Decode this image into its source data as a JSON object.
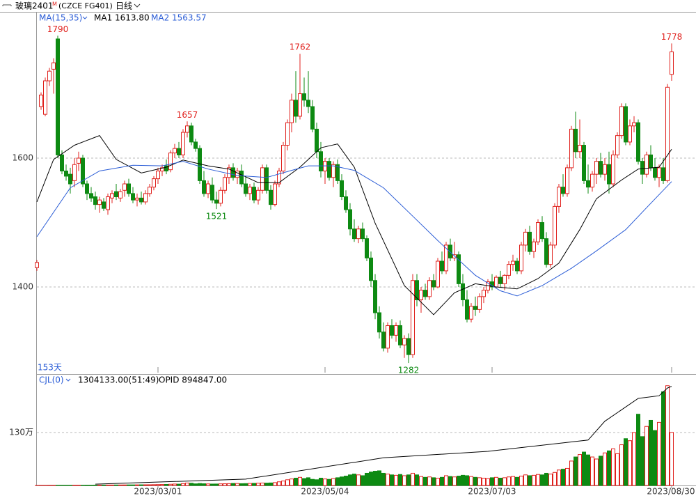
{
  "chart_data": {
    "type": "candlestick",
    "title": "玻璃2401",
    "contract_mark": "M",
    "code": "(CZCE FG401)",
    "period": "日线",
    "indicator": "MA(15,35)",
    "days": "153天",
    "up_color": "#e0201c",
    "down_color": "#0d8a12",
    "ylim": [
      1267,
      1826
    ],
    "yticks": [
      1400,
      1600
    ],
    "grid": true,
    "xticks": [
      {
        "value": 29,
        "label": "2023/03/01"
      },
      {
        "value": 69,
        "label": "2023/05/04"
      },
      {
        "value": 109,
        "label": "2023/07/03"
      },
      {
        "value": 152,
        "label": "2023/08/30"
      }
    ],
    "candles": [
      [
        1430,
        1442,
        1425,
        1438
      ],
      [
        1680,
        1702,
        1675,
        1698
      ],
      [
        1668,
        1725,
        1665,
        1720
      ],
      [
        1720,
        1740,
        1712,
        1735
      ],
      [
        1738,
        1755,
        1700,
        1748
      ],
      [
        1785,
        1790,
        1600,
        1605
      ],
      [
        1605,
        1612,
        1575,
        1580
      ],
      [
        1580,
        1590,
        1565,
        1572
      ],
      [
        1575,
        1585,
        1545,
        1560
      ],
      [
        1565,
        1600,
        1555,
        1590
      ],
      [
        1592,
        1610,
        1580,
        1600
      ],
      [
        1600,
        1605,
        1555,
        1560
      ],
      [
        1560,
        1565,
        1535,
        1545
      ],
      [
        1545,
        1555,
        1532,
        1538
      ],
      [
        1540,
        1548,
        1520,
        1528
      ],
      [
        1528,
        1540,
        1515,
        1535
      ],
      [
        1532,
        1538,
        1518,
        1522
      ],
      [
        1520,
        1545,
        1512,
        1540
      ],
      [
        1538,
        1550,
        1530,
        1545
      ],
      [
        1548,
        1560,
        1535,
        1540
      ],
      [
        1538,
        1552,
        1532,
        1548
      ],
      [
        1550,
        1565,
        1540,
        1560
      ],
      [
        1560,
        1568,
        1540,
        1545
      ],
      [
        1545,
        1555,
        1530,
        1535
      ],
      [
        1535,
        1545,
        1525,
        1538
      ],
      [
        1538,
        1548,
        1528,
        1532
      ],
      [
        1532,
        1550,
        1528,
        1545
      ],
      [
        1545,
        1560,
        1540,
        1555
      ],
      [
        1555,
        1572,
        1550,
        1568
      ],
      [
        1568,
        1585,
        1560,
        1580
      ],
      [
        1580,
        1590,
        1572,
        1585
      ],
      [
        1588,
        1598,
        1575,
        1580
      ],
      [
        1582,
        1612,
        1578,
        1608
      ],
      [
        1608,
        1622,
        1600,
        1615
      ],
      [
        1615,
        1625,
        1600,
        1605
      ],
      [
        1605,
        1645,
        1600,
        1640
      ],
      [
        1640,
        1657,
        1632,
        1650
      ],
      [
        1650,
        1655,
        1620,
        1625
      ],
      [
        1625,
        1630,
        1610,
        1615
      ],
      [
        1615,
        1620,
        1560,
        1565
      ],
      [
        1565,
        1580,
        1540,
        1545
      ],
      [
        1545,
        1565,
        1538,
        1560
      ],
      [
        1558,
        1570,
        1530,
        1535
      ],
      [
        1535,
        1548,
        1521,
        1530
      ],
      [
        1530,
        1555,
        1525,
        1550
      ],
      [
        1550,
        1575,
        1545,
        1570
      ],
      [
        1570,
        1590,
        1560,
        1585
      ],
      [
        1585,
        1592,
        1565,
        1570
      ],
      [
        1570,
        1585,
        1560,
        1580
      ],
      [
        1580,
        1590,
        1555,
        1560
      ],
      [
        1560,
        1572,
        1540,
        1545
      ],
      [
        1545,
        1560,
        1535,
        1555
      ],
      [
        1555,
        1562,
        1530,
        1535
      ],
      [
        1535,
        1555,
        1528,
        1550
      ],
      [
        1550,
        1590,
        1545,
        1585
      ],
      [
        1585,
        1590,
        1545,
        1550
      ],
      [
        1550,
        1558,
        1520,
        1528
      ],
      [
        1528,
        1565,
        1525,
        1560
      ],
      [
        1560,
        1585,
        1555,
        1580
      ],
      [
        1580,
        1625,
        1575,
        1620
      ],
      [
        1620,
        1660,
        1612,
        1655
      ],
      [
        1655,
        1700,
        1640,
        1690
      ],
      [
        1690,
        1735,
        1655,
        1665
      ],
      [
        1665,
        1762,
        1660,
        1700
      ],
      [
        1700,
        1725,
        1680,
        1690
      ],
      [
        1690,
        1735,
        1670,
        1680
      ],
      [
        1680,
        1690,
        1640,
        1645
      ],
      [
        1645,
        1655,
        1600,
        1610
      ],
      [
        1610,
        1625,
        1570,
        1580
      ],
      [
        1580,
        1600,
        1560,
        1595
      ],
      [
        1595,
        1600,
        1565,
        1570
      ],
      [
        1570,
        1595,
        1555,
        1590
      ],
      [
        1590,
        1598,
        1560,
        1565
      ],
      [
        1565,
        1575,
        1535,
        1540
      ],
      [
        1540,
        1550,
        1515,
        1520
      ],
      [
        1520,
        1530,
        1480,
        1490
      ],
      [
        1490,
        1505,
        1470,
        1475
      ],
      [
        1475,
        1495,
        1468,
        1490
      ],
      [
        1490,
        1500,
        1470,
        1475
      ],
      [
        1475,
        1480,
        1440,
        1445
      ],
      [
        1445,
        1455,
        1400,
        1410
      ],
      [
        1410,
        1420,
        1350,
        1360
      ],
      [
        1360,
        1370,
        1320,
        1330
      ],
      [
        1330,
        1345,
        1300,
        1305
      ],
      [
        1305,
        1345,
        1298,
        1340
      ],
      [
        1340,
        1350,
        1320,
        1325
      ],
      [
        1325,
        1345,
        1315,
        1340
      ],
      [
        1340,
        1348,
        1305,
        1310
      ],
      [
        1310,
        1325,
        1290,
        1320
      ],
      [
        1320,
        1328,
        1282,
        1295
      ],
      [
        1295,
        1420,
        1290,
        1410
      ],
      [
        1410,
        1420,
        1370,
        1380
      ],
      [
        1380,
        1400,
        1360,
        1395
      ],
      [
        1395,
        1405,
        1380,
        1385
      ],
      [
        1385,
        1415,
        1380,
        1410
      ],
      [
        1410,
        1420,
        1395,
        1400
      ],
      [
        1400,
        1445,
        1398,
        1440
      ],
      [
        1440,
        1455,
        1420,
        1425
      ],
      [
        1425,
        1470,
        1420,
        1465
      ],
      [
        1465,
        1475,
        1440,
        1445
      ],
      [
        1445,
        1470,
        1440,
        1450
      ],
      [
        1450,
        1455,
        1400,
        1405
      ],
      [
        1405,
        1420,
        1370,
        1380
      ],
      [
        1380,
        1395,
        1345,
        1350
      ],
      [
        1350,
        1375,
        1345,
        1370
      ],
      [
        1370,
        1385,
        1355,
        1365
      ],
      [
        1365,
        1390,
        1360,
        1385
      ],
      [
        1385,
        1400,
        1375,
        1395
      ],
      [
        1395,
        1412,
        1390,
        1408
      ],
      [
        1408,
        1420,
        1395,
        1400
      ],
      [
        1400,
        1418,
        1398,
        1415
      ],
      [
        1415,
        1425,
        1400,
        1405
      ],
      [
        1405,
        1420,
        1395,
        1418
      ],
      [
        1418,
        1440,
        1412,
        1435
      ],
      [
        1435,
        1450,
        1425,
        1440
      ],
      [
        1440,
        1445,
        1420,
        1425
      ],
      [
        1425,
        1470,
        1420,
        1465
      ],
      [
        1465,
        1490,
        1455,
        1485
      ],
      [
        1485,
        1495,
        1450,
        1455
      ],
      [
        1455,
        1475,
        1445,
        1470
      ],
      [
        1470,
        1505,
        1465,
        1500
      ],
      [
        1500,
        1510,
        1470,
        1475
      ],
      [
        1475,
        1485,
        1430,
        1435
      ],
      [
        1435,
        1470,
        1430,
        1465
      ],
      [
        1465,
        1530,
        1460,
        1525
      ],
      [
        1525,
        1560,
        1515,
        1555
      ],
      [
        1555,
        1575,
        1540,
        1545
      ],
      [
        1545,
        1590,
        1540,
        1585
      ],
      [
        1585,
        1650,
        1580,
        1645
      ],
      [
        1645,
        1672,
        1600,
        1610
      ],
      [
        1610,
        1660,
        1600,
        1620
      ],
      [
        1620,
        1625,
        1560,
        1565
      ],
      [
        1565,
        1590,
        1545,
        1555
      ],
      [
        1555,
        1580,
        1548,
        1575
      ],
      [
        1575,
        1600,
        1560,
        1595
      ],
      [
        1595,
        1608,
        1570,
        1575
      ],
      [
        1575,
        1600,
        1565,
        1590
      ],
      [
        1590,
        1610,
        1545,
        1560
      ],
      [
        1560,
        1612,
        1555,
        1605
      ],
      [
        1605,
        1640,
        1600,
        1635
      ],
      [
        1635,
        1685,
        1630,
        1680
      ],
      [
        1680,
        1685,
        1620,
        1625
      ],
      [
        1625,
        1660,
        1620,
        1650
      ],
      [
        1650,
        1665,
        1640,
        1655
      ],
      [
        1655,
        1660,
        1590,
        1595
      ],
      [
        1595,
        1600,
        1560,
        1575
      ],
      [
        1575,
        1610,
        1570,
        1605
      ],
      [
        1605,
        1620,
        1580,
        1585
      ],
      [
        1585,
        1600,
        1565,
        1570
      ],
      [
        1570,
        1590,
        1555,
        1585
      ],
      [
        1585,
        1600,
        1560,
        1565
      ],
      [
        1565,
        1715,
        1562,
        1710
      ],
      [
        1730,
        1778,
        1720,
        1765
      ]
    ],
    "series": [
      {
        "name": "MA1 1613.80",
        "color": "#000000",
        "x": [
          0,
          4,
          9,
          15,
          19,
          25,
          31,
          35,
          41,
          46,
          53,
          58,
          63,
          68,
          72,
          76,
          81,
          88,
          95,
          100,
          105,
          110,
          115,
          120,
          125,
          130,
          134,
          140,
          144,
          149,
          152
        ],
        "values": [
          1532,
          1598,
          1620,
          1635,
          1598,
          1577,
          1586,
          1597,
          1588,
          1583,
          1562,
          1562,
          1586,
          1616,
          1622,
          1586,
          1499,
          1402,
          1357,
          1391,
          1405,
          1400,
          1397,
          1413,
          1437,
          1489,
          1537,
          1566,
          1583,
          1586,
          1613.8
        ]
      },
      {
        "name": "MA2 1563.57",
        "color": "#2a5cd6",
        "x": [
          0,
          8,
          15,
          23,
          30,
          35,
          41,
          48,
          55,
          61,
          65,
          71,
          76,
          83,
          90,
          96,
          105,
          111,
          115,
          121,
          128,
          134,
          141,
          146,
          152
        ],
        "values": [
          1478,
          1554,
          1580,
          1589,
          1588,
          1595,
          1583,
          1573,
          1570,
          1581,
          1588,
          1588,
          1581,
          1554,
          1510,
          1472,
          1418,
          1394,
          1386,
          1402,
          1429,
          1456,
          1489,
          1523,
          1563.57
        ]
      }
    ],
    "annotations": [
      {
        "x": 5,
        "value": 1790
      },
      {
        "x": 36,
        "value": 1657
      },
      {
        "x": 43,
        "value": 1521
      },
      {
        "x": 63,
        "value": 1762
      },
      {
        "x": 89,
        "value": 1282
      },
      {
        "x": 152,
        "value": 1778
      }
    ],
    "volume": {
      "indicator": "CJL(0)",
      "readout": "1304133.00(51:49)",
      "ylim": [
        0,
        2720000
      ],
      "yticks": [
        {
          "value": 1300000,
          "label": "130万"
        }
      ],
      "values": [
        3000,
        4000,
        4000,
        5000,
        5000,
        6000,
        6000,
        6000,
        6000,
        7000,
        7000,
        7000,
        8000,
        8000,
        9000,
        10000,
        10000,
        11000,
        11000,
        12000,
        12000,
        13000,
        14000,
        14000,
        15000,
        16000,
        17000,
        18000,
        20000,
        22000,
        24000,
        26000,
        30000,
        35000,
        33000,
        45000,
        60000,
        55000,
        40000,
        48000,
        42000,
        38000,
        35000,
        36000,
        40000,
        42000,
        45000,
        50000,
        48000,
        44000,
        46000,
        50000,
        52000,
        55000,
        60000,
        58000,
        62000,
        70000,
        90000,
        110000,
        140000,
        160000,
        180000,
        200000,
        170000,
        190000,
        150000,
        140000,
        180000,
        160000,
        150000,
        170000,
        190000,
        210000,
        230000,
        260000,
        280000,
        260000,
        240000,
        300000,
        330000,
        350000,
        360000,
        300000,
        280000,
        260000,
        250000,
        270000,
        240000,
        260000,
        300000,
        260000,
        220000,
        200000,
        210000,
        190000,
        180000,
        200000,
        240000,
        220000,
        210000,
        230000,
        250000,
        240000,
        220000,
        200000,
        190000,
        180000,
        170000,
        190000,
        200000,
        180000,
        190000,
        210000,
        220000,
        200000,
        230000,
        260000,
        240000,
        250000,
        270000,
        260000,
        300000,
        280000,
        320000,
        380000,
        400000,
        420000,
        600000,
        700000,
        760000,
        820000,
        750000,
        700000,
        650000,
        720000,
        800000,
        850000,
        900000,
        780000,
        1000000,
        1150000,
        1100000,
        1300000,
        1750000,
        1200000,
        1450000,
        1600000,
        1350000,
        1550000,
        2300000,
        2450000,
        1304133
      ],
      "open_interest": {
        "name": "OPID 894847.00",
        "color": "#000000",
        "y2lim": [
          0,
          1000000
        ],
        "x": [
          14,
          50,
          83,
          108,
          132,
          136,
          144,
          149,
          151,
          152
        ],
        "values": [
          12000,
          57000,
          250000,
          308000,
          410000,
          580000,
          786000,
          810000,
          880000,
          894847
        ]
      }
    }
  }
}
